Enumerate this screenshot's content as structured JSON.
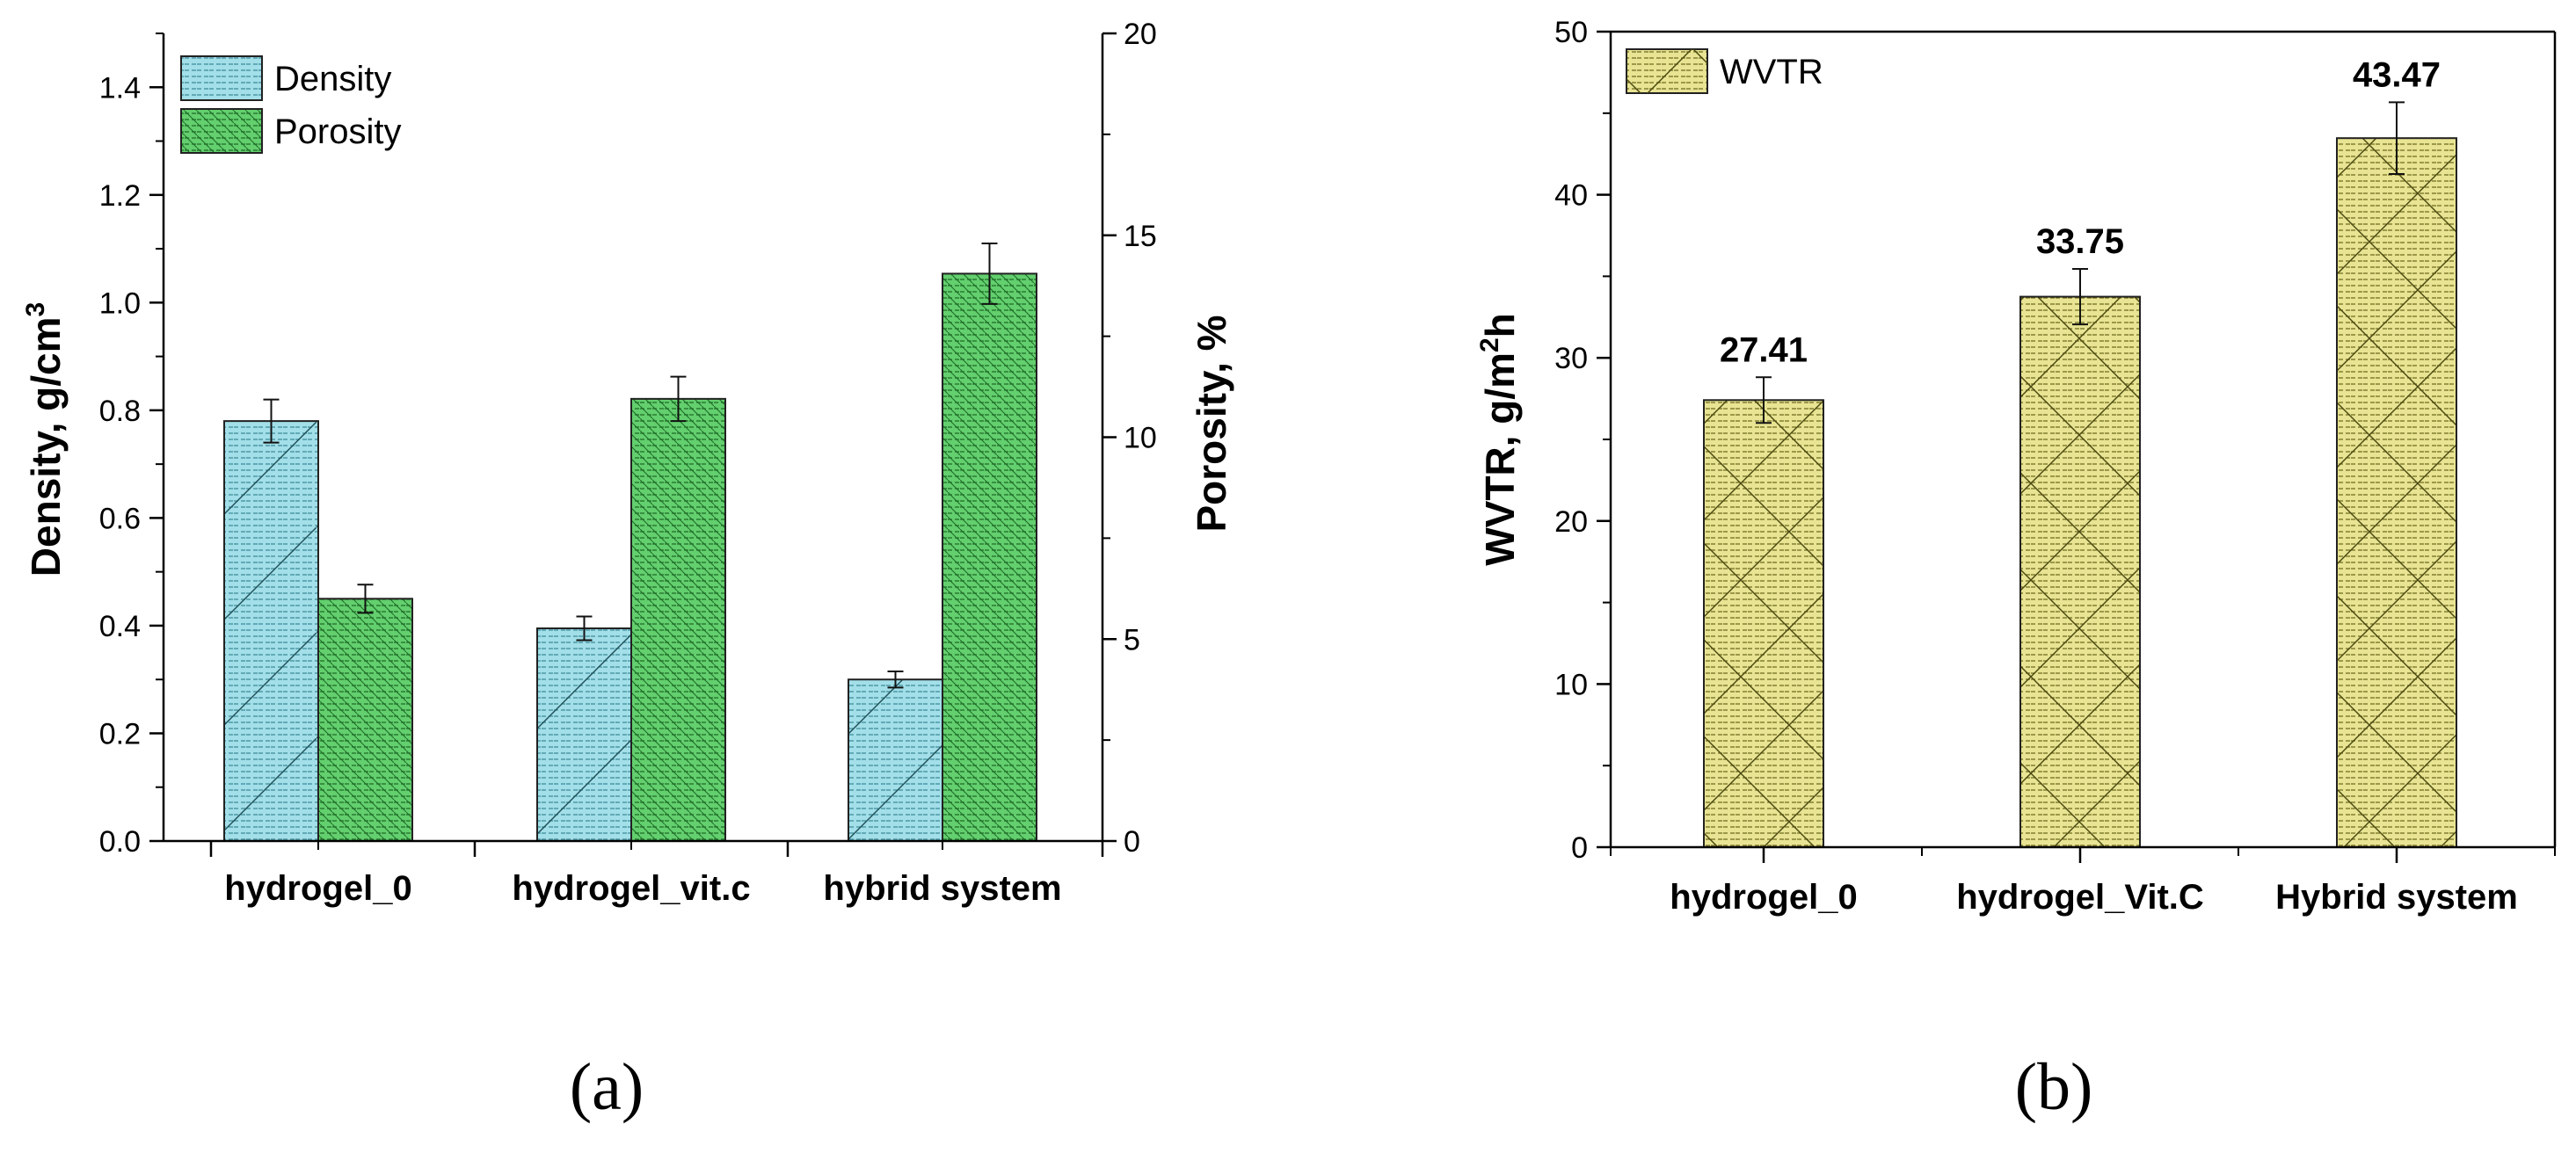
{
  "chart_data": [
    {
      "type": "bar",
      "panel_label": "(a)",
      "categories": [
        "hydrogel_0",
        "hydrogel_vit.c",
        "hybrid system"
      ],
      "series": [
        {
          "name": "Density",
          "axis": "left",
          "color": "#9fdde8",
          "values": [
            0.78,
            0.395,
            0.3
          ],
          "errors": [
            0.04,
            0.022,
            0.015
          ]
        },
        {
          "name": "Porosity",
          "axis": "right",
          "color": "#5fcf6a",
          "values": [
            6.0,
            10.95,
            14.05
          ],
          "errors": [
            0.35,
            0.55,
            0.75
          ]
        }
      ],
      "ylabel": "Density, g/cm",
      "ylabel_sup": "3",
      "y2label": "Porosity, %",
      "ylim": [
        0,
        1.5
      ],
      "y2lim": [
        0,
        20
      ],
      "yticks": [
        "0.0",
        "0.2",
        "0.4",
        "0.6",
        "0.8",
        "1.0",
        "1.2",
        "1.4"
      ],
      "y2ticks": [
        "0",
        "5",
        "10",
        "15",
        "20"
      ],
      "legend_position": "top-left"
    },
    {
      "type": "bar",
      "panel_label": "(b)",
      "categories": [
        "hydrogel_0",
        "hydrogel_Vit.C",
        "Hybrid system"
      ],
      "series": [
        {
          "name": "WVTR",
          "color": "#e6e28f",
          "values": [
            27.41,
            33.75,
            43.47
          ],
          "errors": [
            1.4,
            1.7,
            2.2
          ]
        }
      ],
      "data_labels": [
        "27.41",
        "33.75",
        "43.47"
      ],
      "ylabel": "WVTR, g/m",
      "ylabel_sup": "2",
      "ylabel_tail": "h",
      "ylim": [
        0,
        50
      ],
      "yticks": [
        "0",
        "10",
        "20",
        "30",
        "40",
        "50"
      ],
      "legend_position": "top-left"
    }
  ]
}
